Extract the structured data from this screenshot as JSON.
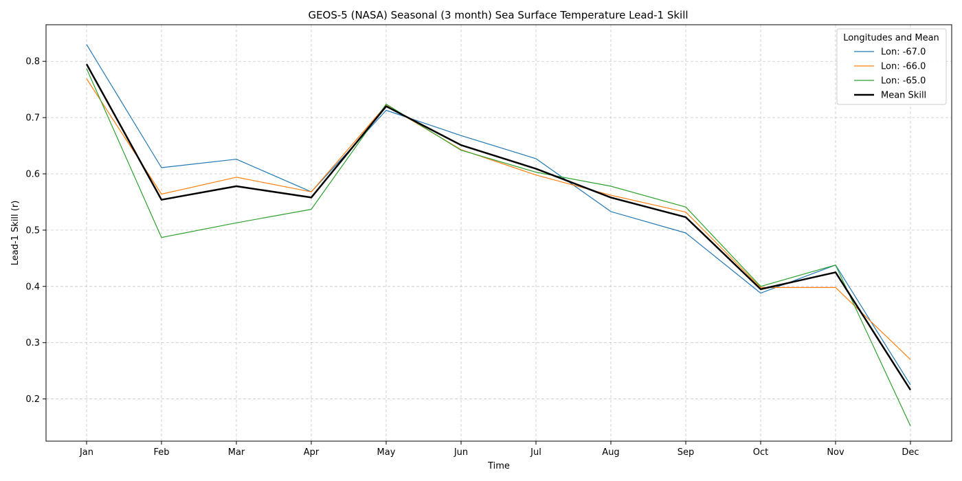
{
  "chart_data": {
    "type": "line",
    "title": "GEOS-5 (NASA) Seasonal (3 month) Sea Surface Temperature Lead-1 Skill",
    "xlabel": "Time",
    "ylabel": "Lead-1 Skill (r)",
    "categories": [
      "Jan",
      "Feb",
      "Mar",
      "Apr",
      "May",
      "Jun",
      "Jul",
      "Aug",
      "Sep",
      "Oct",
      "Nov",
      "Dec"
    ],
    "ylim": [
      0.125,
      0.865
    ],
    "yticks": [
      0.2,
      0.3,
      0.4,
      0.5,
      0.6,
      0.7,
      0.8
    ],
    "ytick_labels": [
      "0.2",
      "0.3",
      "0.4",
      "0.5",
      "0.6",
      "0.7",
      "0.8"
    ],
    "grid": true,
    "legend": {
      "title": "Longitudes and Mean",
      "placement": "top-right"
    },
    "series": [
      {
        "name": "Lon: -67.0",
        "color": "#1f77b4",
        "width": "thin",
        "values": [
          0.83,
          0.611,
          0.626,
          0.568,
          0.713,
          0.668,
          0.627,
          0.533,
          0.495,
          0.388,
          0.438,
          0.225
        ]
      },
      {
        "name": "Lon: -66.0",
        "color": "#ff7f0e",
        "width": "thin",
        "values": [
          0.769,
          0.564,
          0.594,
          0.568,
          0.722,
          0.643,
          0.598,
          0.562,
          0.532,
          0.398,
          0.398,
          0.27
        ]
      },
      {
        "name": "Lon: -65.0",
        "color": "#2ca02c",
        "width": "thin",
        "values": [
          0.787,
          0.487,
          0.513,
          0.537,
          0.724,
          0.642,
          0.603,
          0.578,
          0.541,
          0.4,
          0.438,
          0.152
        ]
      },
      {
        "name": "Mean Skill",
        "color": "#000000",
        "width": "thick",
        "values": [
          0.795,
          0.554,
          0.578,
          0.558,
          0.72,
          0.651,
          0.609,
          0.558,
          0.523,
          0.395,
          0.425,
          0.216
        ]
      }
    ]
  }
}
